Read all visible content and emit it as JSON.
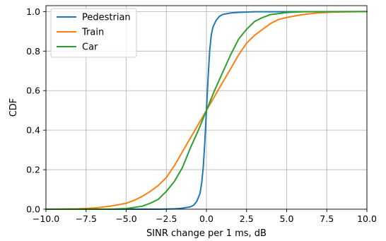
{
  "chart_data": {
    "type": "line",
    "title": "",
    "xlabel": "SINR change per 1 ms, dB",
    "ylabel": "CDF",
    "xlim": [
      -10,
      10
    ],
    "ylim": [
      0,
      1.03
    ],
    "xticks": [
      -10,
      -7.5,
      -5,
      -2.5,
      0,
      2.5,
      5,
      7.5,
      10
    ],
    "xtick_labels": [
      "−10.0",
      "−7.5",
      "−5.0",
      "−2.5",
      "0.0",
      "2.5",
      "5.0",
      "7.5",
      "10.0"
    ],
    "yticks": [
      0,
      0.2,
      0.4,
      0.6,
      0.8,
      1.0
    ],
    "ytick_labels": [
      "0.0",
      "0.2",
      "0.4",
      "0.6",
      "0.8",
      "1.0"
    ],
    "grid": true,
    "legend_position": "top-left",
    "series": [
      {
        "name": "Pedestrian",
        "color": "#1f77b4",
        "x": [
          -10,
          -3,
          -2,
          -1.5,
          -1,
          -0.8,
          -0.6,
          -0.4,
          -0.3,
          -0.2,
          -0.1,
          0,
          0.1,
          0.2,
          0.3,
          0.4,
          0.6,
          0.8,
          1,
          1.5,
          2,
          3,
          10
        ],
        "y": [
          0,
          0,
          0.002,
          0.005,
          0.012,
          0.02,
          0.04,
          0.08,
          0.13,
          0.21,
          0.34,
          0.5,
          0.66,
          0.8,
          0.88,
          0.92,
          0.955,
          0.975,
          0.985,
          0.993,
          0.996,
          0.999,
          1
        ]
      },
      {
        "name": "Train",
        "color": "#ff7f0e",
        "x": [
          -10,
          -8,
          -7,
          -6,
          -5,
          -4.5,
          -4,
          -3.5,
          -3,
          -2.5,
          -2,
          -1.5,
          -1,
          -0.5,
          0,
          0.5,
          1,
          1.5,
          2,
          2.5,
          3,
          3.5,
          4,
          4.5,
          5,
          6,
          7,
          8,
          10
        ],
        "y": [
          0,
          0.002,
          0.006,
          0.015,
          0.03,
          0.045,
          0.065,
          0.09,
          0.12,
          0.16,
          0.22,
          0.29,
          0.36,
          0.43,
          0.5,
          0.57,
          0.64,
          0.71,
          0.78,
          0.84,
          0.88,
          0.91,
          0.94,
          0.96,
          0.97,
          0.985,
          0.994,
          0.998,
          1
        ]
      },
      {
        "name": "Car",
        "color": "#2ca02c",
        "x": [
          -10,
          -6,
          -5,
          -4,
          -3.5,
          -3,
          -2.5,
          -2,
          -1.5,
          -1,
          -0.5,
          0,
          0.5,
          1,
          1.5,
          2,
          2.5,
          3,
          3.5,
          4,
          5,
          6,
          10
        ],
        "y": [
          0,
          0,
          0.003,
          0.015,
          0.03,
          0.05,
          0.09,
          0.14,
          0.21,
          0.31,
          0.4,
          0.5,
          0.6,
          0.69,
          0.78,
          0.86,
          0.91,
          0.95,
          0.97,
          0.985,
          0.995,
          0.999,
          1
        ]
      }
    ]
  }
}
